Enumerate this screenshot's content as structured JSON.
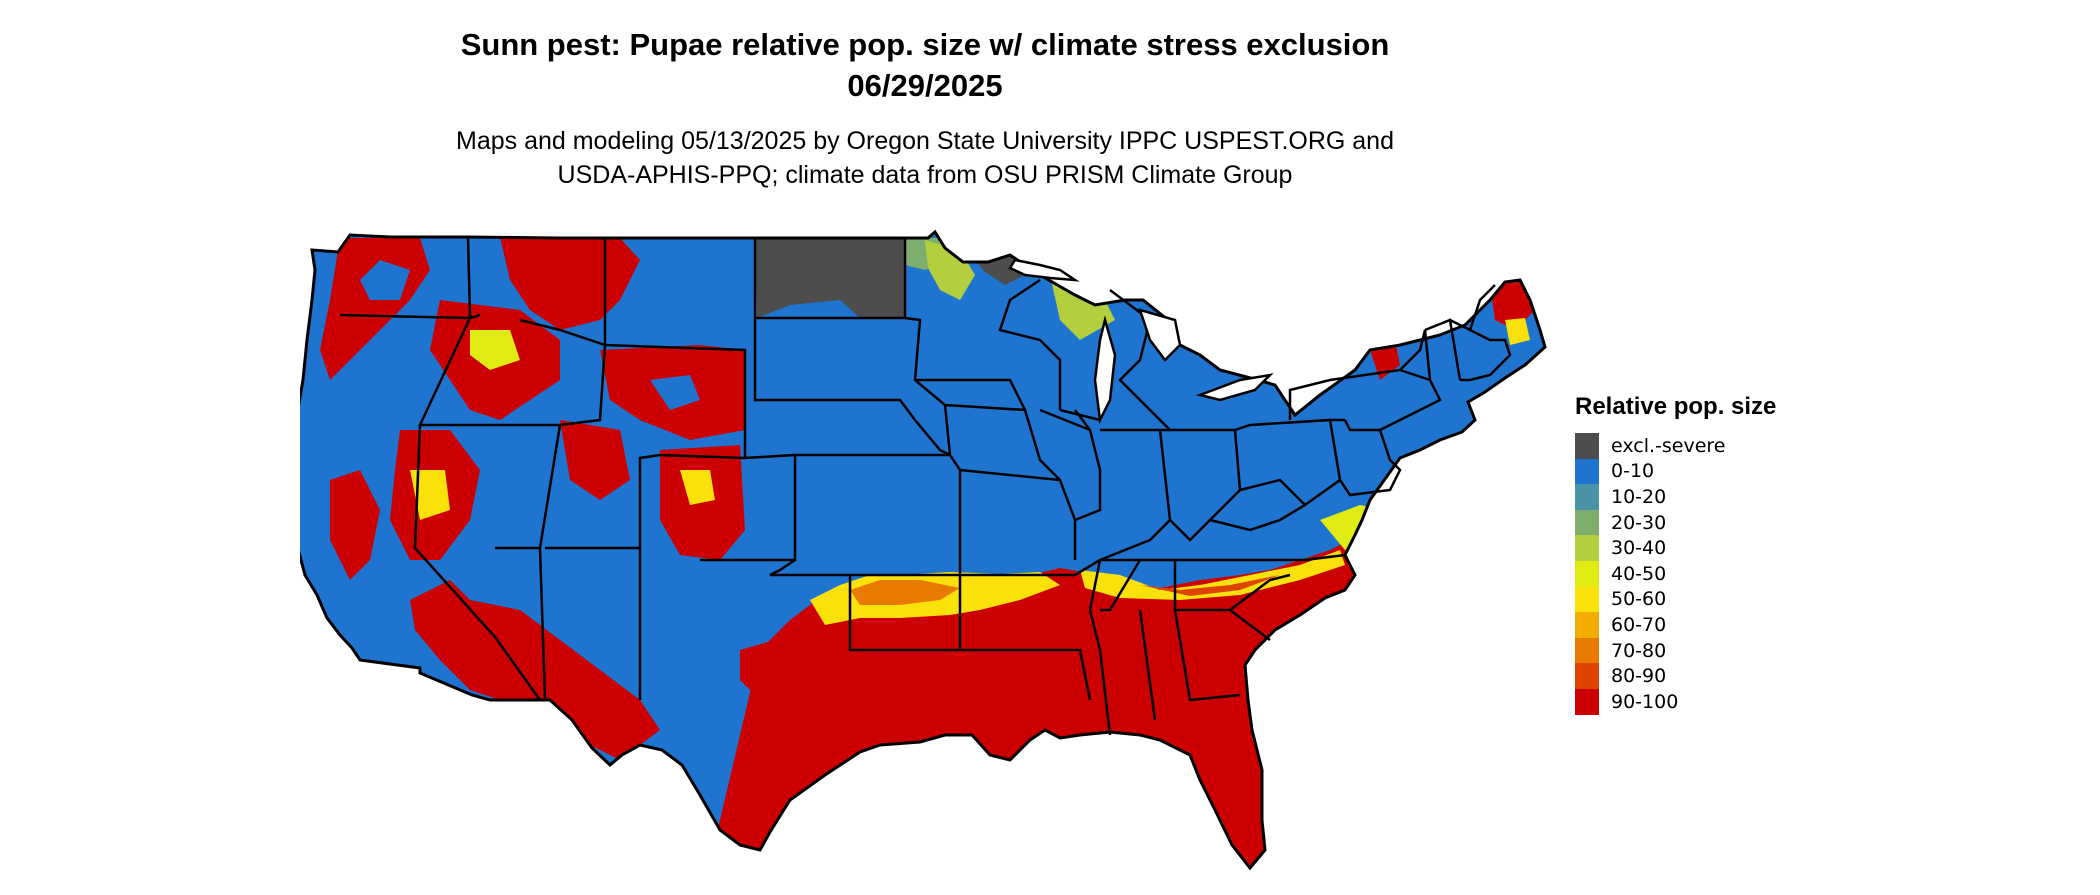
{
  "title": {
    "line1": "Sunn pest: Pupae relative pop. size w/ climate stress exclusion",
    "line2": "06/29/2025"
  },
  "subtitle": {
    "line1": "Maps and modeling 05/13/2025 by Oregon State University IPPC USPEST.ORG and",
    "line2": "USDA-APHIS-PPQ; climate data from OSU PRISM Climate Group"
  },
  "legend": {
    "title": "Relative pop. size",
    "items": [
      {
        "label": "excl.-severe",
        "color": "#4d4d4d"
      },
      {
        "label": "0-10",
        "color": "#1f74d0"
      },
      {
        "label": "10-20",
        "color": "#4a92a6"
      },
      {
        "label": "20-30",
        "color": "#7eae6d"
      },
      {
        "label": "30-40",
        "color": "#b4cf3e"
      },
      {
        "label": "40-50",
        "color": "#e0ea13"
      },
      {
        "label": "50-60",
        "color": "#fbe10a"
      },
      {
        "label": "60-70",
        "color": "#f2ad00"
      },
      {
        "label": "70-80",
        "color": "#e87a00"
      },
      {
        "label": "80-90",
        "color": "#de4300"
      },
      {
        "label": "90-100",
        "color": "#cc0000"
      }
    ]
  },
  "map": {
    "region": "contiguous United States",
    "boundaries": "state outlines",
    "background_color": "#1f74d0"
  }
}
